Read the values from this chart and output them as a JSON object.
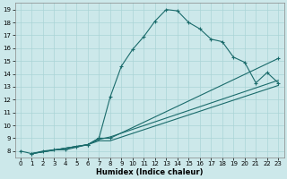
{
  "xlabel": "Humidex (Indice chaleur)",
  "xlim": [
    -0.5,
    23.5
  ],
  "ylim": [
    7.5,
    19.5
  ],
  "xticks": [
    0,
    1,
    2,
    3,
    4,
    5,
    6,
    7,
    8,
    9,
    10,
    11,
    12,
    13,
    14,
    15,
    16,
    17,
    18,
    19,
    20,
    21,
    22,
    23
  ],
  "yticks": [
    8,
    9,
    10,
    11,
    12,
    13,
    14,
    15,
    16,
    17,
    18,
    19
  ],
  "bg_color": "#cce8ea",
  "line_color": "#1a6b6b",
  "grid_color": "#aad4d6",
  "line1": [
    [
      0,
      8
    ],
    [
      1,
      7.8
    ],
    [
      2,
      8.0
    ],
    [
      3,
      8.1
    ],
    [
      4,
      8.1
    ],
    [
      5,
      8.3
    ],
    [
      6,
      8.5
    ],
    [
      7,
      9.0
    ],
    [
      8,
      12.2
    ],
    [
      9,
      14.6
    ],
    [
      10,
      15.9
    ],
    [
      11,
      16.9
    ],
    [
      12,
      18.1
    ],
    [
      13,
      19.0
    ],
    [
      14,
      18.9
    ],
    [
      15,
      18.0
    ],
    [
      16,
      17.5
    ],
    [
      17,
      16.7
    ],
    [
      18,
      16.5
    ],
    [
      19,
      15.3
    ],
    [
      20,
      14.9
    ],
    [
      21,
      13.3
    ],
    [
      22,
      14.1
    ],
    [
      23,
      13.3
    ]
  ],
  "line2": [
    [
      1,
      7.8
    ],
    [
      6,
      8.5
    ],
    [
      7,
      9.0
    ],
    [
      8,
      9.0
    ],
    [
      23,
      15.2
    ]
  ],
  "line3": [
    [
      1,
      7.8
    ],
    [
      6,
      8.5
    ],
    [
      7,
      8.9
    ],
    [
      8,
      9.1
    ],
    [
      23,
      13.5
    ]
  ],
  "line4": [
    [
      1,
      7.8
    ],
    [
      6,
      8.5
    ],
    [
      7,
      8.8
    ],
    [
      8,
      8.8
    ],
    [
      23,
      13.1
    ]
  ]
}
